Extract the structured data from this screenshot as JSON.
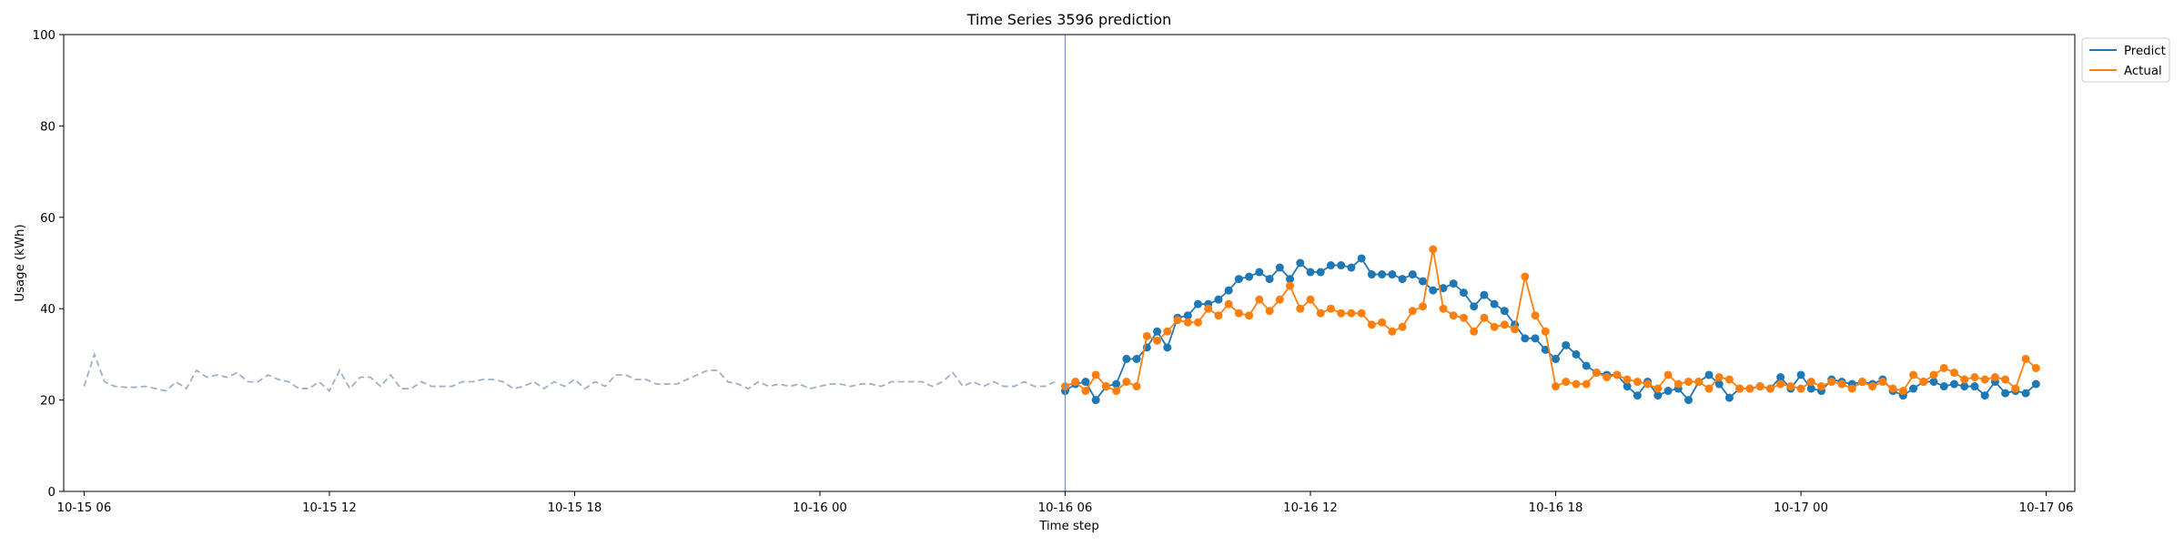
{
  "chart_data": {
    "type": "line",
    "title": "Time Series 3596 prediction",
    "xlabel": "Time step",
    "ylabel": "Usage (kWh)",
    "ylim": [
      0,
      100
    ],
    "yticks": [
      0,
      20,
      40,
      60,
      80,
      100
    ],
    "xlim_hours": [
      -0.5,
      48.7
    ],
    "x_unit": "hours after 10-15 06:00",
    "xticks": [
      {
        "label": "10-15 06",
        "hour": 0
      },
      {
        "label": "10-15 12",
        "hour": 6
      },
      {
        "label": "10-15 18",
        "hour": 12
      },
      {
        "label": "10-16 00",
        "hour": 18
      },
      {
        "label": "10-16 06",
        "hour": 24
      },
      {
        "label": "10-16 12",
        "hour": 30
      },
      {
        "label": "10-16 18",
        "hour": 36
      },
      {
        "label": "10-17 00",
        "hour": 42
      },
      {
        "label": "10-17 06",
        "hour": 48
      }
    ],
    "forecast_start_hour": 24,
    "grid": false,
    "legend_position": "outside-top-right",
    "step_minutes": 15,
    "history": {
      "start_hour": 0,
      "color": "#9fb0c8",
      "style": "dashed",
      "values": [
        23.0,
        30.0,
        24.0,
        23.0,
        22.8,
        22.8,
        23.0,
        22.5,
        22.0,
        24.0,
        22.5,
        26.5,
        25.0,
        25.5,
        25.0,
        26.0,
        24.0,
        24.0,
        25.5,
        24.5,
        24.0,
        22.5,
        22.5,
        24.0,
        22.0,
        26.5,
        22.5,
        25.0,
        25.0,
        23.0,
        25.5,
        22.5,
        22.5,
        24.0,
        23.0,
        23.0,
        23.0,
        24.0,
        24.0,
        24.5,
        24.5,
        24.0,
        22.5,
        23.0,
        24.0,
        22.5,
        24.0,
        23.0,
        24.5,
        22.5,
        24.0,
        23.0,
        25.5,
        25.5,
        24.5,
        24.5,
        23.5,
        23.5,
        23.5,
        24.5,
        25.5,
        26.5,
        26.5,
        24.0,
        23.5,
        22.5,
        24.0,
        23.0,
        23.5,
        23.0,
        23.5,
        22.5,
        23.0,
        23.5,
        23.5,
        23.0,
        23.5,
        23.5,
        23.0,
        24.0,
        24.0,
        24.0,
        24.0,
        23.0,
        24.0,
        26.0,
        23.0,
        24.0,
        23.0,
        24.0,
        23.0,
        23.0,
        24.0,
        23.0,
        23.0,
        24.0
      ]
    },
    "series": [
      {
        "name": "Predict",
        "color": "#1f77b4",
        "start_hour": 24,
        "values": [
          22.0,
          23.5,
          24.0,
          20.0,
          23.0,
          23.5,
          29.0,
          29.0,
          31.5,
          35.0,
          31.5,
          38.0,
          38.5,
          41.0,
          41.0,
          42.0,
          44.0,
          46.5,
          47.0,
          48.0,
          46.5,
          49.0,
          46.5,
          50.0,
          48.0,
          48.0,
          49.5,
          49.5,
          49.0,
          51.0,
          47.5,
          47.5,
          47.5,
          46.5,
          47.5,
          46.0,
          44.0,
          44.5,
          45.5,
          43.5,
          40.5,
          43.0,
          41.0,
          39.5,
          36.5,
          33.5,
          33.5,
          31.0,
          29.0,
          32.0,
          30.0,
          27.5,
          26.0,
          25.5,
          25.5,
          23.0,
          21.0,
          24.0,
          21.0,
          22.0,
          22.5,
          20.0,
          24.0,
          25.5,
          23.5,
          20.5,
          22.5,
          22.5,
          23.0,
          22.5,
          25.0,
          22.5,
          25.5,
          22.5,
          22.0,
          24.5,
          24.0,
          23.5,
          24.0,
          23.5,
          24.5,
          22.0,
          21.0,
          22.5,
          24.0,
          24.0,
          23.0,
          23.5,
          23.0,
          23.0,
          21.0,
          24.0,
          21.5,
          22.0,
          21.5,
          23.5
        ]
      },
      {
        "name": "Actual",
        "color": "#ff7f0e",
        "start_hour": 24,
        "values": [
          23.0,
          24.0,
          22.0,
          25.5,
          23.0,
          22.0,
          24.0,
          23.0,
          34.0,
          33.0,
          35.0,
          37.5,
          37.0,
          37.0,
          40.0,
          38.5,
          41.0,
          39.0,
          38.5,
          42.0,
          39.5,
          42.0,
          45.0,
          40.0,
          42.0,
          39.0,
          40.0,
          39.0,
          39.0,
          39.0,
          36.5,
          37.0,
          35.0,
          36.0,
          39.5,
          40.5,
          53.0,
          40.0,
          38.5,
          38.0,
          35.0,
          38.0,
          36.0,
          36.5,
          35.5,
          47.0,
          38.5,
          35.0,
          23.0,
          24.0,
          23.5,
          23.5,
          26.0,
          25.0,
          25.5,
          24.5,
          24.0,
          23.5,
          22.5,
          25.5,
          23.5,
          24.0,
          24.0,
          22.5,
          25.0,
          24.5,
          22.5,
          22.5,
          23.0,
          22.5,
          23.5,
          23.0,
          22.5,
          24.0,
          23.0,
          24.0,
          23.5,
          22.5,
          24.0,
          23.0,
          24.0,
          22.5,
          22.0,
          25.5,
          24.0,
          25.5,
          27.0,
          26.0,
          24.5,
          25.0,
          24.5,
          25.0,
          24.5,
          22.5,
          29.0,
          27.0
        ]
      }
    ]
  }
}
